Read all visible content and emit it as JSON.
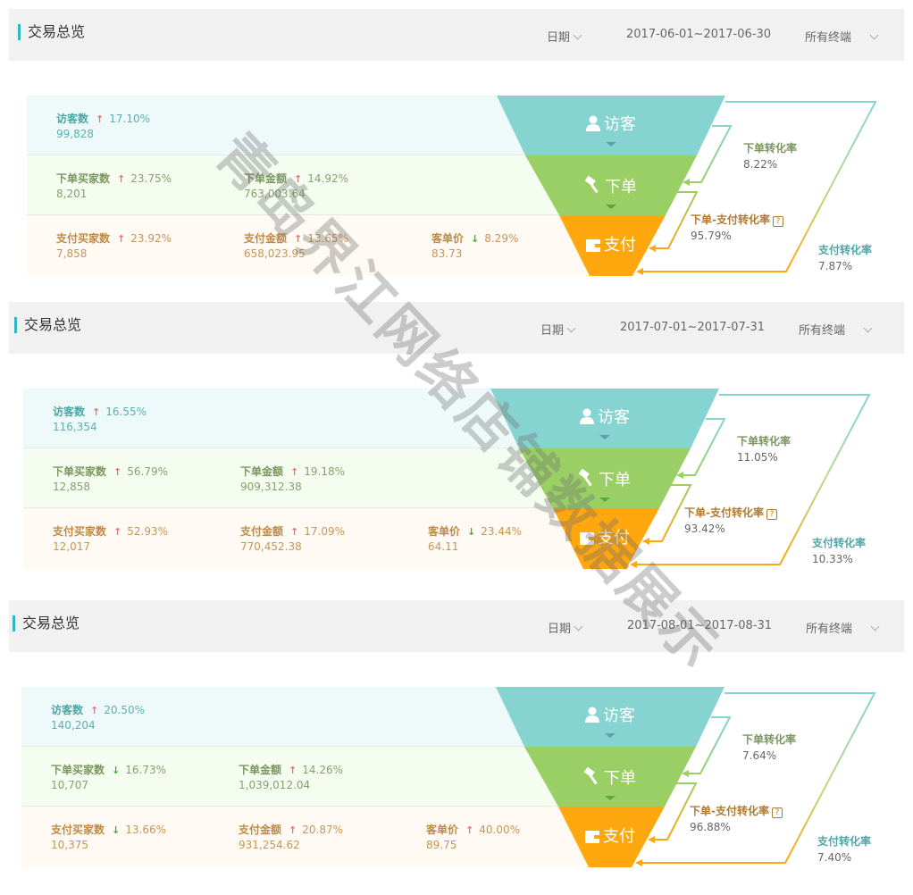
{
  "watermark": "青岛界江网络店铺数据展示",
  "colors": {
    "visitor": "#86d4d2",
    "order": "#9acf66",
    "pay": "#ffa70f",
    "accent": "#2fb7c2",
    "up": "#f36c6c",
    "down": "#3cb034"
  },
  "panels": [
    {
      "title": "交易总览",
      "date_label": "日期",
      "date_range": "2017-06-01~2017-06-30",
      "terminal": "所有终端",
      "visitors": {
        "label": "访客数",
        "trend": "up",
        "pct": "17.10%",
        "value": "99,828"
      },
      "order_buyers": {
        "label": "下单买家数",
        "trend": "up",
        "pct": "23.75%",
        "value": "8,201"
      },
      "order_amount": {
        "label": "下单金额",
        "trend": "up",
        "pct": "14.92%",
        "value": "763,003.64"
      },
      "pay_buyers": {
        "label": "支付买家数",
        "trend": "up",
        "pct": "23.92%",
        "value": "7,858"
      },
      "pay_amount": {
        "label": "支付金额",
        "trend": "up",
        "pct": "13.65%",
        "value": "658,023.95"
      },
      "unit_price": {
        "label": "客单价",
        "trend": "down",
        "pct": "8.29%",
        "value": "83.73"
      },
      "funnel": {
        "visitor": "访客",
        "order": "下单",
        "pay": "支付"
      },
      "order_rate": {
        "label": "下单转化率",
        "value": "8.22%"
      },
      "order_pay_rate": {
        "label": "下单-支付转化率",
        "value": "95.79%",
        "help_icon": "question-icon"
      },
      "pay_rate": {
        "label": "支付转化率",
        "value": "7.87%"
      }
    },
    {
      "title": "交易总览",
      "date_label": "日期",
      "date_range": "2017-07-01~2017-07-31",
      "terminal": "所有终端",
      "visitors": {
        "label": "访客数",
        "trend": "up",
        "pct": "16.55%",
        "value": "116,354"
      },
      "order_buyers": {
        "label": "下单买家数",
        "trend": "up",
        "pct": "56.79%",
        "value": "12,858"
      },
      "order_amount": {
        "label": "下单金额",
        "trend": "up",
        "pct": "19.18%",
        "value": "909,312.38"
      },
      "pay_buyers": {
        "label": "支付买家数",
        "trend": "up",
        "pct": "52.93%",
        "value": "12,017"
      },
      "pay_amount": {
        "label": "支付金额",
        "trend": "up",
        "pct": "17.09%",
        "value": "770,452.38"
      },
      "unit_price": {
        "label": "客单价",
        "trend": "down",
        "pct": "23.44%",
        "value": "64.11"
      },
      "funnel": {
        "visitor": "访客",
        "order": "下单",
        "pay": "支付"
      },
      "order_rate": {
        "label": "下单转化率",
        "value": "11.05%"
      },
      "order_pay_rate": {
        "label": "下单-支付转化率",
        "value": "93.42%",
        "help_icon": "question-icon"
      },
      "pay_rate": {
        "label": "支付转化率",
        "value": "10.33%"
      }
    },
    {
      "title": "交易总览",
      "date_label": "日期",
      "date_range": "2017-08-01~2017-08-31",
      "terminal": "所有终端",
      "visitors": {
        "label": "访客数",
        "trend": "up",
        "pct": "20.50%",
        "value": "140,204"
      },
      "order_buyers": {
        "label": "下单买家数",
        "trend": "down",
        "pct": "16.73%",
        "value": "10,707"
      },
      "order_amount": {
        "label": "下单金额",
        "trend": "up",
        "pct": "14.26%",
        "value": "1,039,012.04"
      },
      "pay_buyers": {
        "label": "支付买家数",
        "trend": "down",
        "pct": "13.66%",
        "value": "10,375"
      },
      "pay_amount": {
        "label": "支付金额",
        "trend": "up",
        "pct": "20.87%",
        "value": "931,254.62"
      },
      "unit_price": {
        "label": "客单价",
        "trend": "up",
        "pct": "40.00%",
        "value": "89.75"
      },
      "funnel": {
        "visitor": "访客",
        "order": "下单",
        "pay": "支付"
      },
      "order_rate": {
        "label": "下单转化率",
        "value": "7.64%"
      },
      "order_pay_rate": {
        "label": "下单-支付转化率",
        "value": "96.88%",
        "help_icon": "question-icon"
      },
      "pay_rate": {
        "label": "支付转化率",
        "value": "7.40%"
      }
    }
  ]
}
